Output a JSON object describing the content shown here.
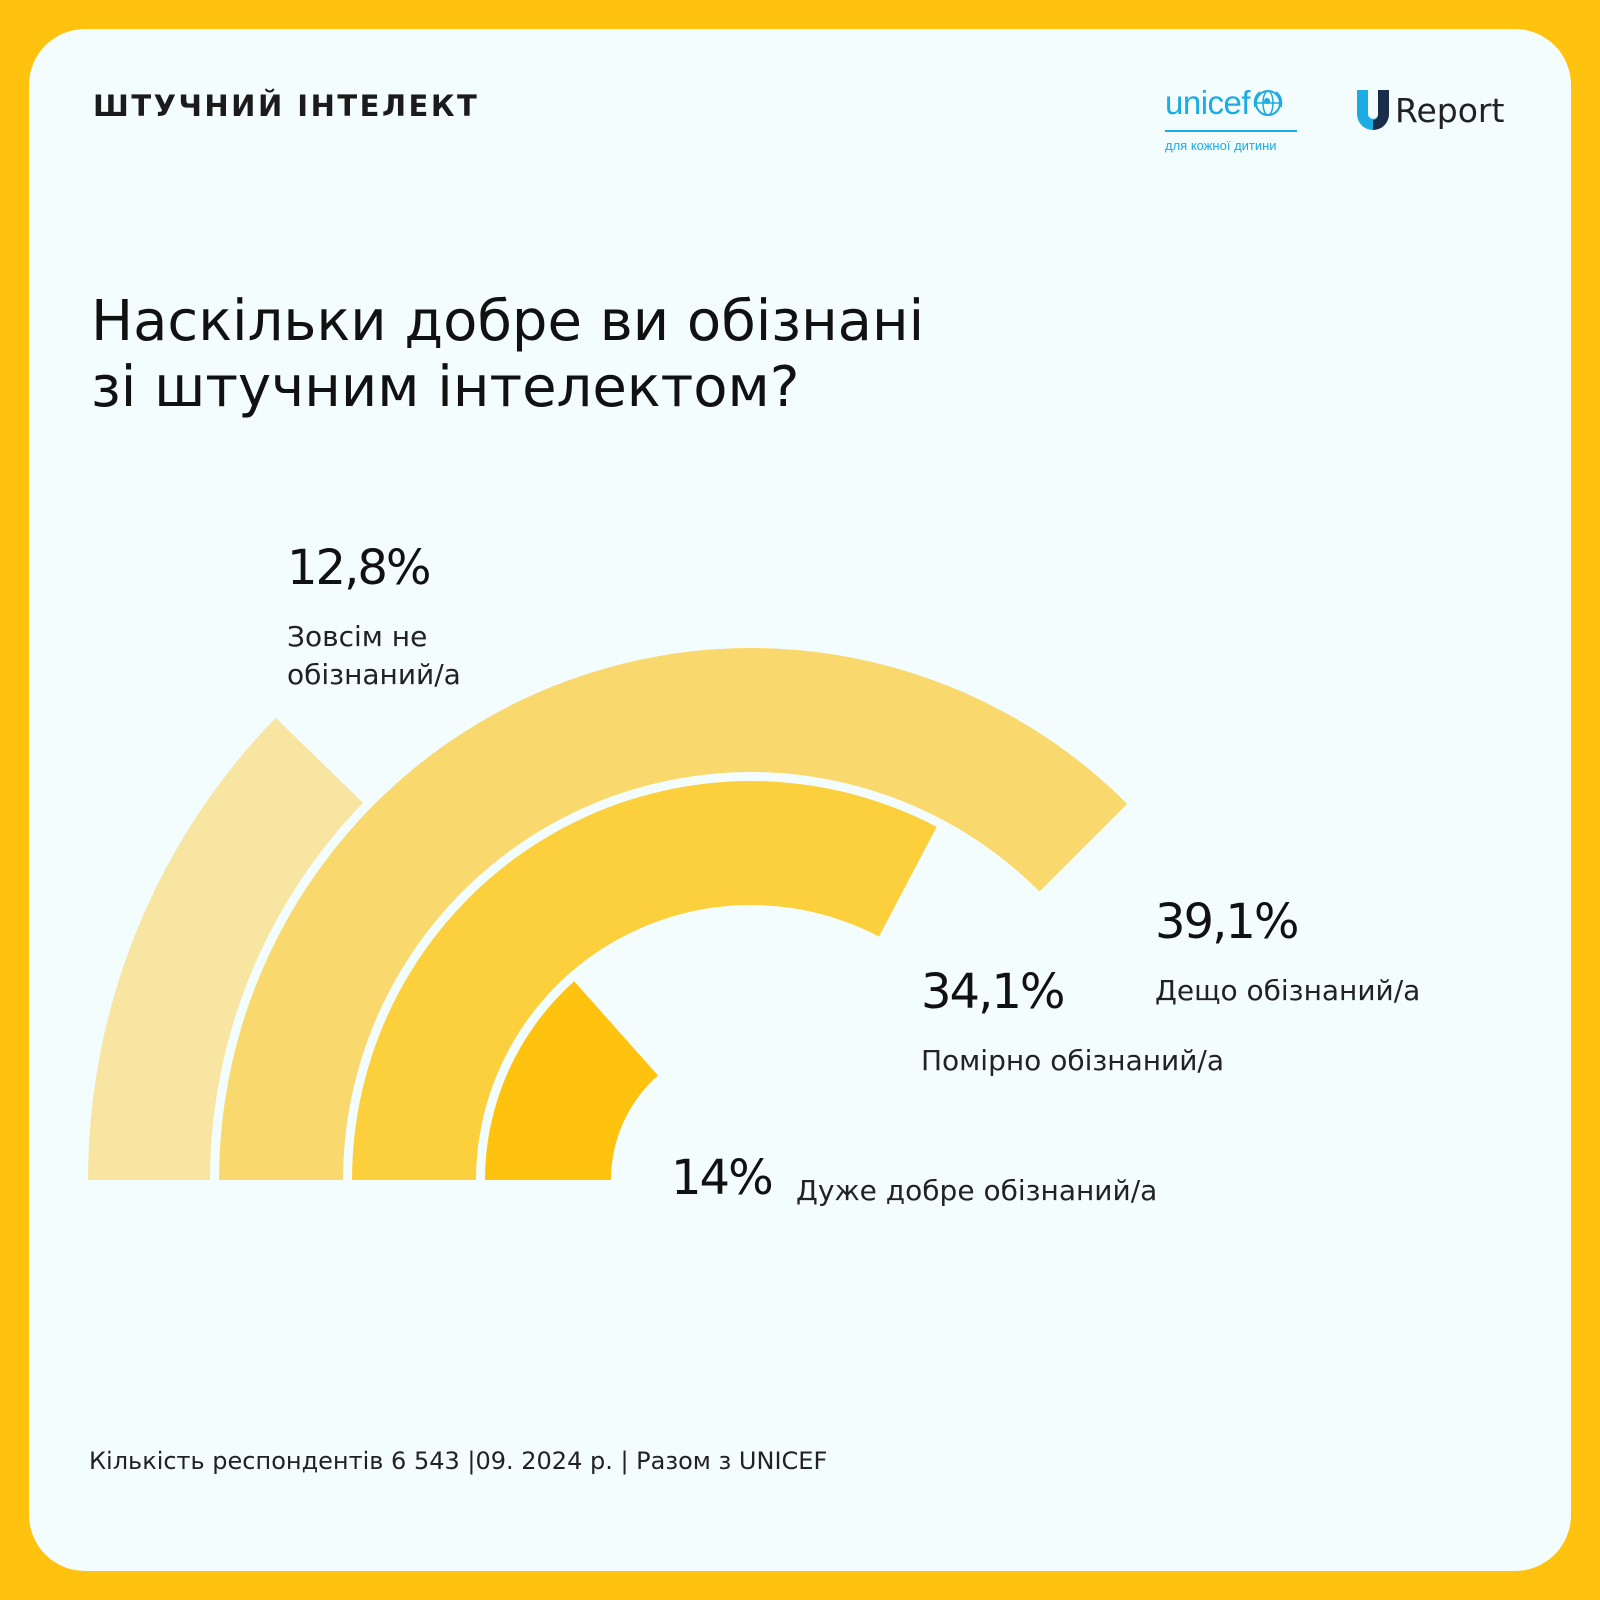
{
  "header": {
    "section_label": "ШТУЧНИЙ ІНТЕЛЕКТ",
    "unicef_wordmark": "unicef",
    "unicef_tagline": "для кожної дитини",
    "ureport_text": "Report"
  },
  "question": {
    "line1": "Наскільки добре ви обізнані",
    "line2": "зі штучним інтелектом?"
  },
  "footer": {
    "text": "Кількість респондентів 6 543 |09. 2024 р. | Разом з UNICEF"
  },
  "colors": {
    "frame": "#FFC20E",
    "background": "#F3FDFE",
    "series": [
      "#F8E5A2",
      "#F9D96E",
      "#FCD03C",
      "#FFC20E"
    ],
    "unicef_blue": "#1CABE2"
  },
  "chart_data": {
    "type": "radial-bar",
    "title": "Наскільки добре ви обізнані зі штучним інтелектом?",
    "scale_max": 39.1,
    "series": [
      {
        "label_lines": [
          "Зовсім не",
          "обізнаний/а"
        ],
        "value": 12.8,
        "value_label": "12,8%",
        "color": "#F8E5A2"
      },
      {
        "label_lines": [
          "Дещо обізнаний/а"
        ],
        "value": 39.1,
        "value_label": "39,1%",
        "color": "#F9D96E"
      },
      {
        "label_lines": [
          "Помірно обізнаний/а"
        ],
        "value": 34.1,
        "value_label": "34,1%",
        "color": "#FCD03C"
      },
      {
        "label_lines": [
          "Дуже добре обізнаний/а"
        ],
        "value": 14,
        "value_label": "14%",
        "color": "#FFC20E"
      }
    ]
  }
}
